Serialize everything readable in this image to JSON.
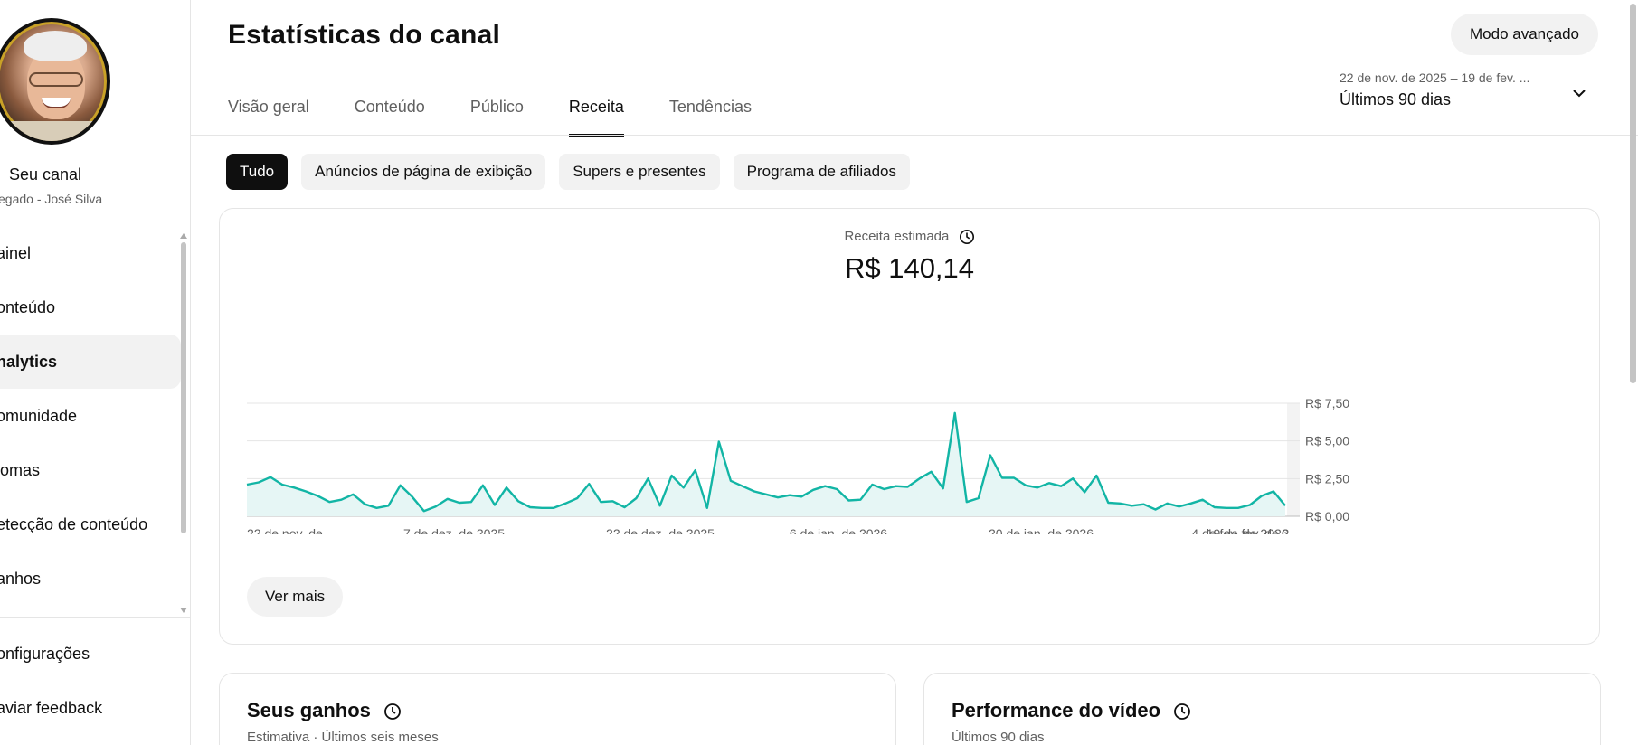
{
  "sidebar": {
    "channel_name": "Seu canal",
    "channel_sub": "egado - José Silva",
    "items": [
      {
        "label": "ainel"
      },
      {
        "label": "onteúdo"
      },
      {
        "label": "nalytics",
        "active": true
      },
      {
        "label": "omunidade"
      },
      {
        "label": "iomas"
      },
      {
        "label": "etecção de conteúdo"
      },
      {
        "label": "anhos"
      }
    ],
    "bottom_items": [
      {
        "label": "onfigurações"
      },
      {
        "label": "aviar feedback"
      }
    ]
  },
  "header": {
    "title": "Estatísticas do canal",
    "advanced_button": "Modo avançado",
    "tabs": [
      {
        "label": "Visão geral"
      },
      {
        "label": "Conteúdo"
      },
      {
        "label": "Público"
      },
      {
        "label": "Receita",
        "active": true
      },
      {
        "label": "Tendências"
      }
    ],
    "date_range": {
      "range_text": "22 de nov. de 2025 – 19 de fev. ...",
      "label": "Últimos 90 dias"
    }
  },
  "chips": [
    {
      "label": "Tudo",
      "active": true
    },
    {
      "label": "Anúncios de página de exibição"
    },
    {
      "label": "Supers e presentes"
    },
    {
      "label": "Programa de afiliados"
    }
  ],
  "metric": {
    "label": "Receita estimada",
    "value": "R$ 140,14"
  },
  "see_more": "Ver mais",
  "cards": [
    {
      "title": "Seus ganhos",
      "subtitle": "Estimativa · Últimos seis meses"
    },
    {
      "title": "Performance do vídeo",
      "subtitle": "Últimos 90 dias"
    }
  ],
  "colors": {
    "accent_line": "#12b5a5",
    "accent_fill": "#e6f6f5",
    "active_chip": "#0f0f0f"
  },
  "chart_data": {
    "type": "area",
    "x_tick_labels": [
      "22 de nov. de ...",
      "7 de dez. de 2025",
      "22 de dez. de 2025",
      "6 de jan. de 2026",
      "20 de jan. de 2026",
      "4 de fev. de 2026",
      "19 de fev. de 2..."
    ],
    "y_tick_labels": [
      "R$ 0,00",
      "R$ 2,50",
      "R$ 5,00",
      "R$ 7,50"
    ],
    "ylim": [
      0,
      7.5
    ],
    "yticks": [
      0,
      2.5,
      5,
      7.5
    ],
    "values": [
      2.1,
      2.25,
      2.6,
      2.1,
      1.9,
      1.65,
      1.35,
      0.95,
      1.1,
      1.45,
      0.8,
      0.55,
      0.7,
      2.05,
      1.3,
      0.35,
      0.65,
      1.15,
      0.9,
      0.95,
      2.05,
      0.75,
      1.9,
      1.0,
      0.6,
      0.55,
      0.55,
      0.85,
      1.2,
      2.15,
      0.95,
      1.0,
      0.6,
      1.2,
      2.5,
      0.7,
      2.7,
      1.9,
      3.05,
      0.55,
      4.95,
      2.35,
      2.0,
      1.65,
      1.45,
      1.25,
      1.4,
      1.3,
      1.75,
      2.0,
      1.8,
      1.05,
      1.1,
      2.1,
      1.8,
      2.0,
      1.95,
      2.5,
      2.95,
      1.85,
      6.85,
      0.95,
      1.2,
      4.05,
      2.55,
      2.55,
      2.05,
      1.9,
      2.2,
      2.0,
      2.5,
      1.6,
      2.7,
      0.9,
      0.85,
      0.7,
      0.8,
      0.45,
      0.85,
      0.65,
      0.85,
      1.1,
      0.6,
      0.55,
      0.55,
      0.75,
      1.35,
      1.65,
      0.7
    ],
    "grid": true
  }
}
